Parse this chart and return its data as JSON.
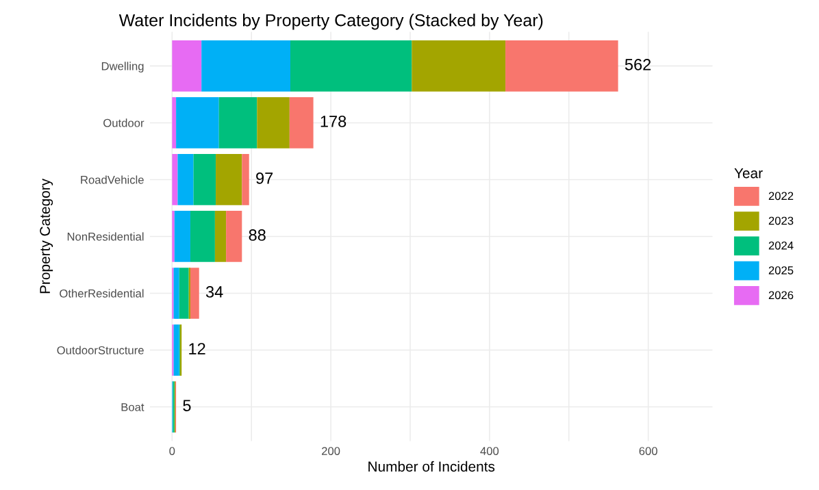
{
  "chart_data": {
    "type": "bar",
    "orientation": "horizontal",
    "stacked": true,
    "title": "Water Incidents by Property Category (Stacked by Year)",
    "xlabel": "Number of Incidents",
    "ylabel": "Property Category",
    "legend_title": "Year",
    "categories": [
      "Dwelling",
      "Outdoor",
      "RoadVehicle",
      "NonResidential",
      "OtherResidential",
      "OutdoorStructure",
      "Boat"
    ],
    "series": [
      {
        "name": "2026",
        "color": "#e76bf3",
        "values": [
          37,
          5,
          7,
          3,
          2,
          2,
          0
        ]
      },
      {
        "name": "2025",
        "color": "#00b0f6",
        "values": [
          112,
          54,
          20,
          20,
          7,
          7,
          1
        ]
      },
      {
        "name": "2024",
        "color": "#00bf7d",
        "values": [
          153,
          48,
          28,
          31,
          12,
          1,
          2
        ]
      },
      {
        "name": "2023",
        "color": "#a3a500",
        "values": [
          118,
          41,
          33,
          14,
          2,
          2,
          1
        ]
      },
      {
        "name": "2022",
        "color": "#f8766d",
        "values": [
          142,
          30,
          9,
          20,
          11,
          0,
          1
        ]
      }
    ],
    "totals": [
      "562",
      "178",
      "97",
      "88",
      "34",
      "12",
      "5"
    ],
    "xlim": [
      -28,
      681
    ],
    "xticks": [
      0,
      {
        "value": 100,
        "label": null
      },
      200,
      {
        "value": 300,
        "label": null
      },
      400,
      {
        "value": 500,
        "label": null
      },
      600
    ],
    "grid": true,
    "legend": "right"
  }
}
